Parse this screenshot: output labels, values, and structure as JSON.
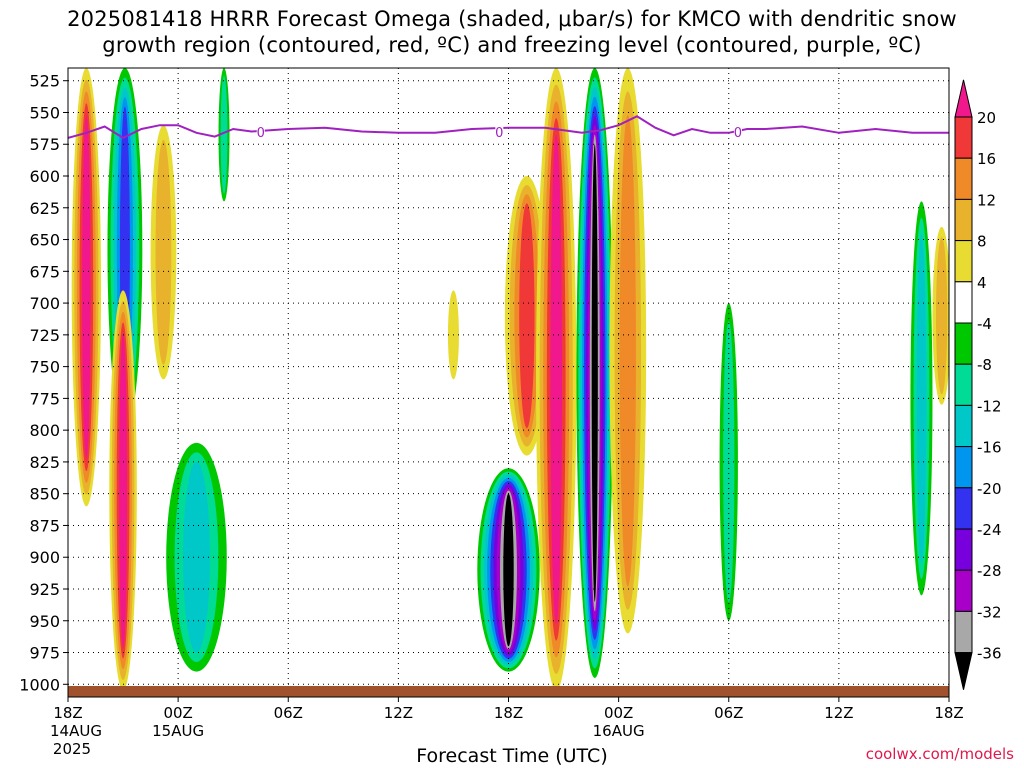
{
  "title_line1": "2025081418 HRRR Forecast Omega (shaded, μbar/s) for KMCO with dendritic snow",
  "title_line2": "growth region (contoured, red, ºC) and freezing level (contoured, purple, ºC)",
  "credit": "coolwx.com/models",
  "chart_data": {
    "type": "heatmap",
    "xlabel": "Forecast Time (UTC)",
    "ylabel": "",
    "x_ticks": [
      {
        "hour": 0,
        "label": "18Z",
        "sub1": "14AUG",
        "sub2": "2025"
      },
      {
        "hour": 6,
        "label": "00Z",
        "sub1": "15AUG",
        "sub2": ""
      },
      {
        "hour": 12,
        "label": "06Z",
        "sub1": "",
        "sub2": ""
      },
      {
        "hour": 18,
        "label": "12Z",
        "sub1": "",
        "sub2": ""
      },
      {
        "hour": 24,
        "label": "18Z",
        "sub1": "",
        "sub2": ""
      },
      {
        "hour": 30,
        "label": "00Z",
        "sub1": "16AUG",
        "sub2": ""
      },
      {
        "hour": 36,
        "label": "06Z",
        "sub1": "",
        "sub2": ""
      },
      {
        "hour": 42,
        "label": "12Z",
        "sub1": "",
        "sub2": ""
      },
      {
        "hour": 48,
        "label": "18Z",
        "sub1": "",
        "sub2": ""
      }
    ],
    "xlim": [
      0,
      48
    ],
    "y_levels": [
      525,
      550,
      575,
      600,
      625,
      650,
      675,
      700,
      725,
      750,
      775,
      800,
      825,
      850,
      875,
      900,
      925,
      950,
      975,
      1000
    ],
    "ylim": [
      515,
      1010
    ],
    "grid": true,
    "colorbar": {
      "labels": [
        "20",
        "16",
        "12",
        "8",
        "4",
        "-4",
        "-8",
        "-12",
        "-16",
        "-20",
        "-24",
        "-28",
        "-32",
        "-36"
      ],
      "colors": [
        "#f0188c",
        "#f03838",
        "#f08a28",
        "#e8b22c",
        "#e8dc32",
        "#ffffff",
        "#00c800",
        "#00dc96",
        "#00c8c8",
        "#0096f0",
        "#3232f0",
        "#7800dc",
        "#a800c8",
        "#a8a8a8",
        "#000000"
      ]
    },
    "freezing_level": {
      "color": "#a020c0",
      "label": "0",
      "hours": [
        0,
        1,
        2,
        3,
        4,
        5,
        6,
        7,
        8,
        9,
        10,
        12,
        14,
        16,
        18,
        20,
        22,
        24,
        26,
        28,
        29,
        30,
        31,
        32,
        33,
        34,
        35,
        36,
        37,
        38,
        40,
        42,
        44,
        46,
        48
      ],
      "pressure": [
        570,
        566,
        561,
        570,
        563,
        560,
        560,
        566,
        569,
        563,
        565,
        563,
        562,
        565,
        566,
        566,
        563,
        562,
        562,
        566,
        564,
        560,
        553,
        562,
        568,
        563,
        566,
        566,
        563,
        563,
        561,
        566,
        563,
        566,
        566
      ],
      "label_hours": [
        10.5,
        23.5,
        36.5
      ]
    },
    "omega_features": [
      {
        "hour": 1.0,
        "p_top": 515,
        "p_bot": 860,
        "width": 1.6,
        "value": 20
      },
      {
        "hour": 3.1,
        "p_top": 515,
        "p_bot": 800,
        "width": 1.9,
        "value": -20
      },
      {
        "hour": 3.0,
        "p_top": 690,
        "p_bot": 1005,
        "width": 1.5,
        "value": 20
      },
      {
        "hour": 5.2,
        "p_top": 560,
        "p_bot": 760,
        "width": 1.4,
        "value": 8
      },
      {
        "hour": 7.0,
        "p_top": 810,
        "p_bot": 990,
        "width": 3.3,
        "value": -12
      },
      {
        "hour": 8.5,
        "p_top": 515,
        "p_bot": 620,
        "width": 0.6,
        "value": -8
      },
      {
        "hour": 25.0,
        "p_top": 600,
        "p_bot": 820,
        "width": 2.4,
        "value": 16
      },
      {
        "hour": 24.0,
        "p_top": 830,
        "p_bot": 990,
        "width": 3.4,
        "value": -36
      },
      {
        "hour": 26.6,
        "p_top": 515,
        "p_bot": 1005,
        "width": 2.2,
        "value": 20
      },
      {
        "hour": 28.7,
        "p_top": 515,
        "p_bot": 995,
        "width": 2.0,
        "value": -36
      },
      {
        "hour": 30.5,
        "p_top": 515,
        "p_bot": 960,
        "width": 2.0,
        "value": 12
      },
      {
        "hour": 36.0,
        "p_top": 700,
        "p_bot": 950,
        "width": 1.0,
        "value": -8
      },
      {
        "hour": 46.5,
        "p_top": 620,
        "p_bot": 930,
        "width": 1.2,
        "value": -12
      },
      {
        "hour": 47.6,
        "p_top": 640,
        "p_bot": 780,
        "width": 1.0,
        "value": 8
      },
      {
        "hour": 21.0,
        "p_top": 690,
        "p_bot": 760,
        "width": 0.6,
        "value": 4
      }
    ]
  }
}
